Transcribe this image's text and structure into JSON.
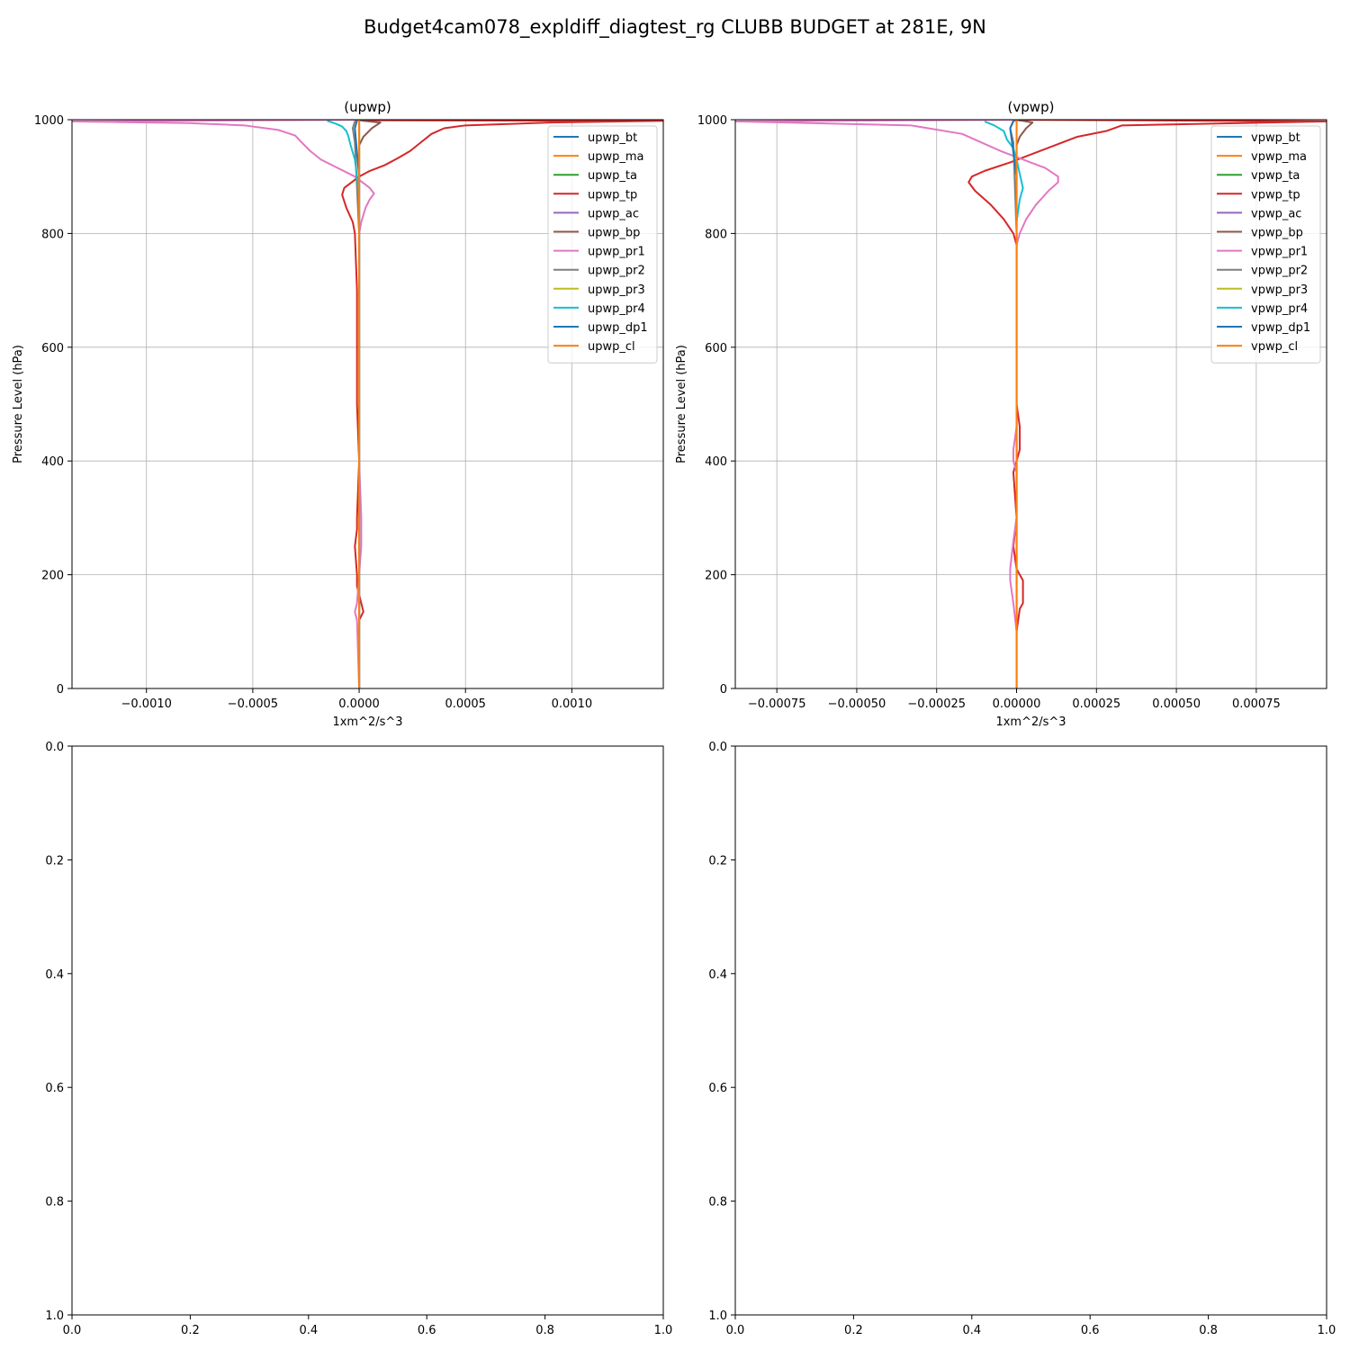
{
  "suptitle": "Budget4cam078_expldiff_diagtest_rg CLUBB BUDGET at 281E, 9N",
  "chart_data": [
    {
      "type": "line",
      "title": "(upwp)",
      "xlabel": "1xm^2/s^3",
      "ylabel": "Pressure Level (hPa)",
      "xlim": [
        -0.00135,
        0.00143
      ],
      "ylim": [
        1000,
        0
      ],
      "xticks": [
        -0.001,
        -0.0005,
        0.0,
        0.0005,
        0.001
      ],
      "xtick_labels": [
        "−0.0010",
        "−0.0005",
        "0.0000",
        "0.0005",
        "0.0010"
      ],
      "yticks": [
        0,
        200,
        400,
        600,
        800,
        1000
      ],
      "ytick_labels": [
        "0",
        "200",
        "400",
        "600",
        "800",
        "1000"
      ],
      "grid": true,
      "legend_loc": "upper-right",
      "series": [
        {
          "name": "upwp_bt",
          "color": "#1f77b4",
          "x": [
            0,
            0,
            0
          ],
          "y": [
            0,
            500,
            995
          ]
        },
        {
          "name": "upwp_ma",
          "color": "#ff7f0e",
          "x": [
            0,
            0,
            0
          ],
          "y": [
            0,
            500,
            995
          ]
        },
        {
          "name": "upwp_ta",
          "color": "#2ca02c",
          "x": [
            0,
            0,
            0,
            0,
            0,
            0
          ],
          "y": [
            0,
            800,
            900,
            960,
            990,
            1000
          ]
        },
        {
          "name": "upwp_tp",
          "color": "#d62728",
          "x": [
            0.0,
            0.0,
            2e-05,
            1e-05,
            -1e-05,
            -1e-05,
            -2e-05,
            -1e-05,
            -1e-05,
            0.0,
            -1e-05,
            -1e-05,
            -1e-05,
            -2e-05,
            -3e-05,
            -6e-05,
            -8e-05,
            -7e-05,
            0.0,
            5e-05,
            0.00012,
            0.00018,
            0.00024,
            0.00029,
            0.00034,
            0.0004,
            0.0005,
            0.0009,
            0.00143,
            0.0,
            0.0
          ],
          "y": [
            0,
            120,
            135,
            150,
            180,
            200,
            250,
            280,
            300,
            400,
            500,
            600,
            700,
            800,
            820,
            845,
            868,
            880,
            900,
            910,
            920,
            932,
            945,
            960,
            975,
            985,
            990,
            995,
            998,
            999,
            1000
          ]
        },
        {
          "name": "upwp_ac",
          "color": "#9467bd",
          "x": [
            0,
            0,
            0
          ],
          "y": [
            0,
            500,
            995
          ]
        },
        {
          "name": "upwp_bp",
          "color": "#8c564b",
          "x": [
            0,
            0,
            0,
            2e-05,
            6e-05,
            0.0001,
            2e-05,
            -1e-05
          ],
          "y": [
            0,
            800,
            955,
            970,
            985,
            995,
            998,
            1000
          ]
        },
        {
          "name": "upwp_pr1",
          "color": "#e377c2",
          "x": [
            0.0,
            -1e-05,
            -2e-05,
            -1e-05,
            0.0,
            1e-05,
            1e-05,
            0.0,
            0.0,
            0.0,
            0.0,
            1e-05,
            3e-05,
            5e-05,
            7e-05,
            5e-05,
            -2e-05,
            -0.0001,
            -0.00018,
            -0.00023,
            -0.00027,
            -0.0003,
            -0.00038,
            -0.00054,
            -0.0008,
            -0.00135,
            0.0
          ],
          "y": [
            0,
            120,
            135,
            150,
            200,
            250,
            300,
            400,
            500,
            600,
            800,
            820,
            845,
            860,
            870,
            880,
            900,
            915,
            930,
            945,
            960,
            972,
            982,
            990,
            994,
            997,
            1000
          ]
        },
        {
          "name": "upwp_pr2",
          "color": "#7f7f7f",
          "x": [
            0,
            0,
            -2e-05,
            -3e-05,
            -2e-05,
            0
          ],
          "y": [
            0,
            800,
            960,
            985,
            997,
            1000
          ]
        },
        {
          "name": "upwp_pr3",
          "color": "#bcbd22",
          "x": [
            0,
            0,
            0
          ],
          "y": [
            0,
            500,
            995
          ]
        },
        {
          "name": "upwp_pr4",
          "color": "#17becf",
          "x": [
            0.0,
            0.0,
            0.0,
            -1e-05,
            -2e-05,
            -4e-05,
            -5e-05,
            -6e-05,
            -8e-05,
            -0.00011,
            -0.00015
          ],
          "y": [
            0,
            600,
            860,
            900,
            930,
            955,
            970,
            980,
            988,
            993,
            998
          ]
        },
        {
          "name": "upwp_dp1",
          "color": "#1f77b4",
          "x": [
            0,
            0,
            -2e-05,
            -1e-05
          ],
          "y": [
            0,
            900,
            985,
            998
          ]
        },
        {
          "name": "upwp_cl",
          "color": "#ff7f0e",
          "x": [
            0,
            0,
            0
          ],
          "y": [
            0,
            500,
            1000
          ]
        }
      ]
    },
    {
      "type": "line",
      "title": "(vpwp)",
      "xlabel": "1xm^2/s^3",
      "ylabel": "Pressure Level (hPa)",
      "xlim": [
        -0.00088,
        0.00097
      ],
      "ylim": [
        1000,
        0
      ],
      "xticks": [
        -0.00075,
        -0.0005,
        -0.00025,
        0.0,
        0.00025,
        0.0005,
        0.00075
      ],
      "xtick_labels": [
        "−0.00075",
        "−0.00050",
        "−0.00025",
        "0.00000",
        "0.00025",
        "0.00050",
        "0.00075"
      ],
      "yticks": [
        0,
        200,
        400,
        600,
        800,
        1000
      ],
      "ytick_labels": [
        "0",
        "200",
        "400",
        "600",
        "800",
        "1000"
      ],
      "grid": true,
      "legend_loc": "upper-right",
      "series": [
        {
          "name": "vpwp_bt",
          "color": "#1f77b4",
          "x": [
            0,
            0,
            0
          ],
          "y": [
            0,
            500,
            995
          ]
        },
        {
          "name": "vpwp_ma",
          "color": "#ff7f0e",
          "x": [
            0,
            0,
            0
          ],
          "y": [
            0,
            500,
            995
          ]
        },
        {
          "name": "vpwp_ta",
          "color": "#2ca02c",
          "x": [
            0,
            0,
            0,
            0,
            0,
            0
          ],
          "y": [
            0,
            800,
            900,
            960,
            990,
            1000
          ]
        },
        {
          "name": "vpwp_tp",
          "color": "#d62728",
          "x": [
            0.0,
            0.0,
            1e-05,
            2e-05,
            2e-05,
            0.0,
            -1e-05,
            0.0,
            -1e-05,
            1e-05,
            1e-05,
            0.0,
            0.0,
            0.0,
            -1e-05,
            -4e-05,
            -8e-05,
            -0.00013,
            -0.00015,
            -0.00014,
            -0.0001,
            -2e-05,
            5e-05,
            0.00012,
            0.00019,
            0.00028,
            0.00033,
            0.00097,
            0.0
          ],
          "y": [
            0,
            100,
            140,
            150,
            190,
            210,
            250,
            300,
            380,
            420,
            460,
            500,
            600,
            780,
            800,
            825,
            850,
            875,
            890,
            900,
            910,
            925,
            940,
            955,
            970,
            980,
            990,
            997,
            1000
          ]
        },
        {
          "name": "vpwp_ac",
          "color": "#9467bd",
          "x": [
            0,
            0,
            0
          ],
          "y": [
            0,
            500,
            995
          ]
        },
        {
          "name": "vpwp_bp",
          "color": "#8c564b",
          "x": [
            0,
            0,
            0,
            1e-05,
            3e-05,
            5e-05,
            2e-05,
            -1e-05
          ],
          "y": [
            0,
            800,
            955,
            970,
            985,
            995,
            998,
            1000
          ]
        },
        {
          "name": "vpwp_pr1",
          "color": "#e377c2",
          "x": [
            0.0,
            0.0,
            -1e-05,
            -2e-05,
            -2e-05,
            -1e-05,
            0.0,
            0.0,
            -1e-05,
            -1e-05,
            0.0,
            0.0,
            0.0,
            1e-05,
            3e-05,
            6e-05,
            0.0001,
            0.00013,
            0.00013,
            9e-05,
            2e-05,
            -5e-05,
            -0.00011,
            -0.00017,
            -0.00033,
            -0.00088,
            0.0
          ],
          "y": [
            0,
            100,
            150,
            190,
            210,
            260,
            300,
            380,
            400,
            420,
            460,
            500,
            780,
            800,
            825,
            850,
            875,
            890,
            900,
            915,
            930,
            945,
            960,
            975,
            990,
            997,
            1000
          ]
        },
        {
          "name": "vpwp_pr2",
          "color": "#7f7f7f",
          "x": [
            0,
            0,
            -1e-05,
            -2e-05,
            -1e-05,
            0
          ],
          "y": [
            0,
            800,
            960,
            985,
            997,
            1000
          ]
        },
        {
          "name": "vpwp_pr3",
          "color": "#bcbd22",
          "x": [
            0,
            0,
            0
          ],
          "y": [
            0,
            500,
            995
          ]
        },
        {
          "name": "vpwp_pr4",
          "color": "#17becf",
          "x": [
            0.0,
            0.0,
            0.0,
            1e-05,
            2e-05,
            1e-05,
            0.0,
            -1e-05,
            -3e-05,
            -4e-05,
            -7e-05,
            -0.0001
          ],
          "y": [
            0,
            600,
            820,
            860,
            880,
            905,
            930,
            950,
            965,
            980,
            990,
            997
          ]
        },
        {
          "name": "vpwp_dp1",
          "color": "#1f77b4",
          "x": [
            0,
            0,
            -2e-05,
            -1e-05
          ],
          "y": [
            0,
            900,
            985,
            998
          ]
        },
        {
          "name": "vpwp_cl",
          "color": "#ff7f0e",
          "x": [
            0,
            0,
            0
          ],
          "y": [
            0,
            500,
            1000
          ]
        }
      ]
    },
    {
      "type": "line",
      "title": "",
      "xlim": [
        0,
        1
      ],
      "ylim": [
        0,
        1
      ],
      "xticks": [
        0,
        0.2,
        0.4,
        0.6,
        0.8,
        1.0
      ],
      "xtick_labels": [
        "0.0",
        "0.2",
        "0.4",
        "0.6",
        "0.8",
        "1.0"
      ],
      "yticks": [
        0,
        0.2,
        0.4,
        0.6,
        0.8,
        1.0
      ],
      "ytick_labels": [
        "0.0",
        "0.2",
        "0.4",
        "0.6",
        "0.8",
        "1.0"
      ],
      "grid": false,
      "series": []
    },
    {
      "type": "line",
      "title": "",
      "xlim": [
        0,
        1
      ],
      "ylim": [
        0,
        1
      ],
      "xticks": [
        0,
        0.2,
        0.4,
        0.6,
        0.8,
        1.0
      ],
      "xtick_labels": [
        "0.0",
        "0.2",
        "0.4",
        "0.6",
        "0.8",
        "1.0"
      ],
      "yticks": [
        0,
        0.2,
        0.4,
        0.6,
        0.8,
        1.0
      ],
      "ytick_labels": [
        "0.0",
        "0.2",
        "0.4",
        "0.6",
        "0.8",
        "1.0"
      ],
      "grid": false,
      "series": []
    }
  ]
}
